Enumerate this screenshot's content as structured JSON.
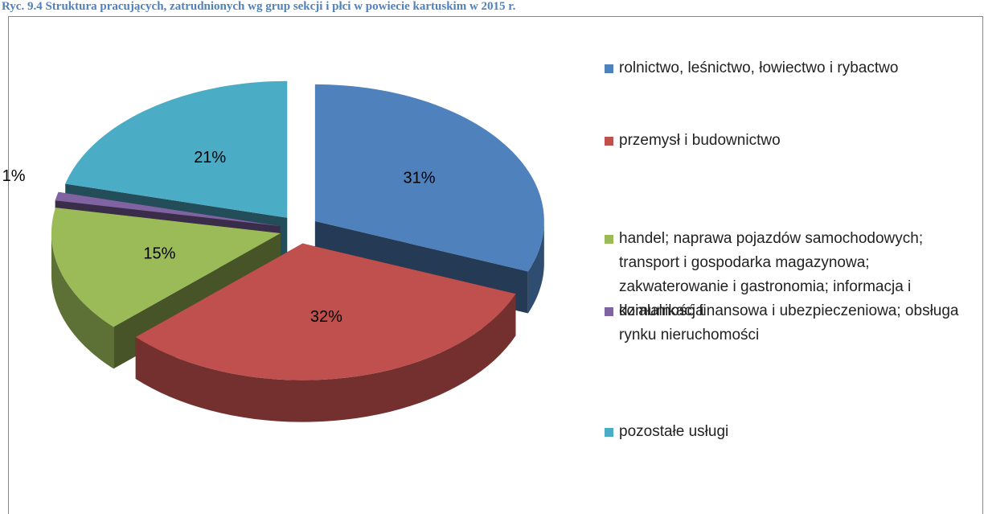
{
  "chart_data": {
    "type": "pie",
    "title": "Ryc. 9.4 Struktura pracujących, zatrudnionych wg grup sekcji i płci w powiecie kartuskim w 2015 r.",
    "categories": [
      "rolnictwo, leśnictwo, łowiectwo i rybactwo",
      "przemysł i budownictwo",
      "handel; naprawa pojazdów samochodowych; transport i gospodarka magazynowa; zakwaterowanie i gastronomia; informacja i komunikacja",
      "działalność finansowa i ubezpieczeniowa; obsługa rynku nieruchomości",
      "pozostałe usługi"
    ],
    "values": [
      31,
      32,
      15,
      1,
      21
    ],
    "value_labels": [
      "31%",
      "32%",
      "15%",
      "1%",
      "21%"
    ],
    "colors": [
      "#4f81bd",
      "#c0504d",
      "#9bbb59",
      "#8064a2",
      "#4bacc6"
    ],
    "legend": "right"
  }
}
